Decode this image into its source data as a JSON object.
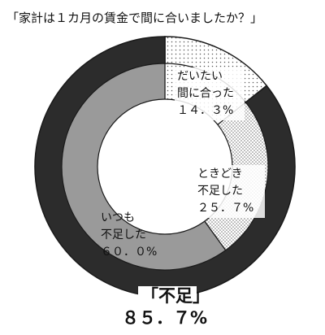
{
  "chart_data": {
    "type": "pie",
    "title": "「家計は１カ月の賃金で間に合いましたか？」",
    "inner_ring": [
      {
        "label_lines": [
          "だいたい",
          "間に合った"
        ],
        "value": 14.3,
        "value_label": "１４．３%"
      },
      {
        "label_lines": [
          "ときどき",
          "不足した"
        ],
        "value": 25.7,
        "value_label": "２５．７%"
      },
      {
        "label_lines": [
          "いつも",
          "不足した"
        ],
        "value": 60.0,
        "value_label": "６０．０%"
      }
    ],
    "outer_ring": [
      {
        "label": "",
        "value": 14.3
      },
      {
        "label": "「不足」",
        "value": 85.7,
        "value_label": "８５．７%"
      }
    ]
  },
  "colors": {
    "outer_dark": "#2c2c2c",
    "inner_gray": "#9a9a9a",
    "dots_fg": "#555555",
    "border": "#1a1a1a"
  }
}
